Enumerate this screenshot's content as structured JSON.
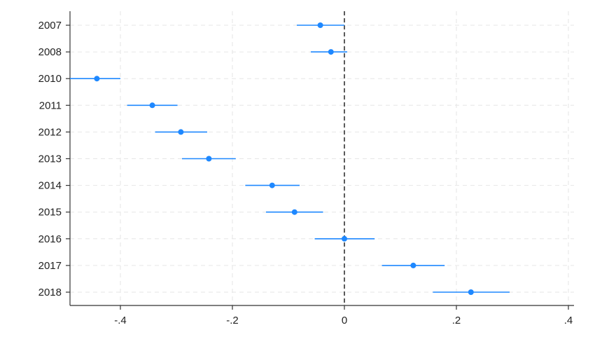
{
  "chart_data": {
    "type": "scatter",
    "title": "",
    "xlabel": "",
    "ylabel": "",
    "xlim": [
      -0.49,
      0.41
    ],
    "xticks": [
      -0.4,
      -0.2,
      0,
      0.2,
      0.4
    ],
    "xtick_labels": [
      "-.4",
      "-.2",
      "0",
      ".2",
      ".4"
    ],
    "reference_line_x": 0,
    "grid": true,
    "legend": "none",
    "color": "#1e88ff",
    "categories": [
      "2007",
      "2008",
      "2010",
      "2011",
      "2012",
      "2013",
      "2014",
      "2015",
      "2016",
      "2017",
      "2018"
    ],
    "estimates": [
      -0.043,
      -0.024,
      -0.442,
      -0.343,
      -0.292,
      -0.242,
      -0.129,
      -0.089,
      0.0,
      0.123,
      0.226
    ],
    "ci_low": [
      -0.085,
      -0.06,
      -0.49,
      -0.388,
      -0.338,
      -0.29,
      -0.177,
      -0.14,
      -0.053,
      0.067,
      0.158
    ],
    "ci_high": [
      0.0,
      0.005,
      -0.4,
      -0.298,
      -0.245,
      -0.194,
      -0.08,
      -0.038,
      0.054,
      0.179,
      0.295
    ]
  }
}
